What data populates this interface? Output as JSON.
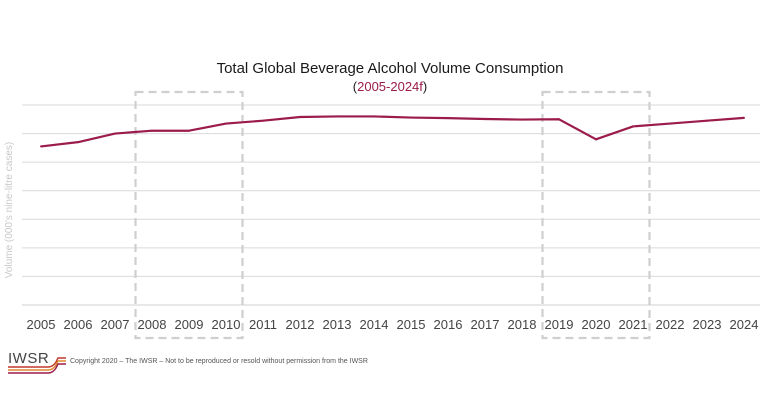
{
  "colors": {
    "line": "#9b1b4b",
    "grid": "#d9d9d9",
    "highlight_box": "#cfcfcf",
    "subtitle_paren": "#1a1a1a",
    "subtitle_range": "#9b1b4b",
    "logo_lines": [
      "#c0392b",
      "#e0872f",
      "#9b1b4b"
    ]
  },
  "header": {
    "title": "Total Global Beverage Alcohol Volume Consumption",
    "subtitle_open": "(",
    "subtitle_range": "2005-2024f",
    "subtitle_close": ")"
  },
  "footer": {
    "logo_text": "IWSR",
    "copyright": "Copyright 2020 – The IWSR – Not to be reproduced or resold without permission from the IWSR"
  },
  "chart_data": {
    "type": "line",
    "title": "Total Global Beverage Alcohol Volume Consumption",
    "subtitle": "(2005-2024f)",
    "xlabel": "",
    "ylabel": "Volume (000's nine-litre cases)",
    "grid": true,
    "y_tick_labels_shown": false,
    "ylim": [
      0,
      7
    ],
    "categories": [
      "2005",
      "2006",
      "2007",
      "2008",
      "2009",
      "2010",
      "2011",
      "2012",
      "2013",
      "2014",
      "2015",
      "2016",
      "2017",
      "2018",
      "2019",
      "2020",
      "2021",
      "2022",
      "2023",
      "2024"
    ],
    "series": [
      {
        "values": [
          5.55,
          5.7,
          6.0,
          6.1,
          6.1,
          6.35,
          6.45,
          6.58,
          6.6,
          6.6,
          6.56,
          6.54,
          6.51,
          6.49,
          6.5,
          5.8,
          6.25,
          6.35,
          6.45,
          6.55
        ]
      }
    ],
    "highlight_ranges": [
      {
        "from": "2008",
        "to": "2010"
      },
      {
        "from": "2019",
        "to": "2021"
      }
    ]
  }
}
